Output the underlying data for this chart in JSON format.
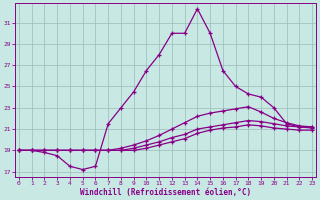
{
  "xlabel": "Windchill (Refroidissement éolien,°C)",
  "bg_color": "#c8e8e4",
  "line_color": "#880088",
  "x_min": -0.3,
  "x_max": 23.3,
  "y_min": 16.5,
  "y_max": 32.8,
  "yticks": [
    17,
    19,
    21,
    23,
    25,
    27,
    29,
    31
  ],
  "xticks": [
    0,
    1,
    2,
    3,
    4,
    5,
    6,
    7,
    8,
    9,
    10,
    11,
    12,
    13,
    14,
    15,
    16,
    17,
    18,
    19,
    20,
    21,
    22,
    23
  ],
  "curves": [
    {
      "x": [
        0,
        1,
        2,
        3,
        4,
        5,
        6,
        7,
        8,
        9,
        10,
        11,
        12,
        13,
        14,
        15,
        16,
        17,
        18,
        19,
        20,
        21,
        22,
        23
      ],
      "y": [
        19.0,
        19.0,
        18.8,
        18.5,
        17.5,
        17.2,
        17.5,
        21.5,
        23.0,
        24.5,
        26.5,
        28.0,
        30.0,
        30.0,
        32.3,
        30.0,
        26.5,
        25.0,
        24.3,
        24.0,
        23.0,
        21.5,
        21.2,
        21.2
      ]
    },
    {
      "x": [
        0,
        1,
        2,
        3,
        4,
        5,
        6,
        7,
        8,
        9,
        10,
        11,
        12,
        13,
        14,
        15,
        16,
        17,
        18,
        19,
        20,
        21,
        22,
        23
      ],
      "y": [
        19.0,
        19.0,
        19.0,
        19.0,
        19.0,
        19.0,
        19.0,
        19.0,
        19.2,
        19.5,
        19.9,
        20.4,
        21.0,
        21.6,
        22.2,
        22.5,
        22.7,
        22.9,
        23.1,
        22.6,
        22.0,
        21.6,
        21.3,
        21.2
      ]
    },
    {
      "x": [
        0,
        1,
        2,
        3,
        4,
        5,
        6,
        7,
        8,
        9,
        10,
        11,
        12,
        13,
        14,
        15,
        16,
        17,
        18,
        19,
        20,
        21,
        22,
        23
      ],
      "y": [
        19.0,
        19.0,
        19.0,
        19.0,
        19.0,
        19.0,
        19.0,
        19.0,
        19.0,
        19.2,
        19.5,
        19.8,
        20.2,
        20.5,
        21.0,
        21.2,
        21.4,
        21.6,
        21.8,
        21.7,
        21.5,
        21.3,
        21.2,
        21.1
      ]
    },
    {
      "x": [
        0,
        1,
        2,
        3,
        4,
        5,
        6,
        7,
        8,
        9,
        10,
        11,
        12,
        13,
        14,
        15,
        16,
        17,
        18,
        19,
        20,
        21,
        22,
        23
      ],
      "y": [
        19.0,
        19.0,
        19.0,
        19.0,
        19.0,
        19.0,
        19.0,
        19.0,
        19.0,
        19.0,
        19.2,
        19.5,
        19.8,
        20.1,
        20.6,
        20.9,
        21.1,
        21.2,
        21.4,
        21.3,
        21.1,
        21.0,
        20.9,
        20.9
      ]
    }
  ]
}
